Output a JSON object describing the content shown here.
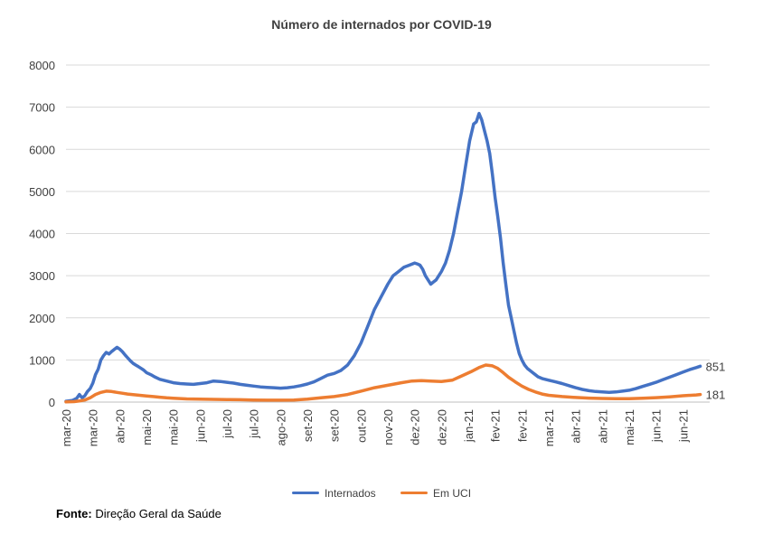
{
  "chart_data": {
    "type": "line",
    "title": "Número de internados por COVID-19",
    "xlabel": "",
    "ylabel": "",
    "ylim": [
      0,
      8000
    ],
    "yticks": [
      0,
      1000,
      2000,
      3000,
      4000,
      5000,
      6000,
      7000,
      8000
    ],
    "x_range_days": [
      0,
      480
    ],
    "x_ticks": [
      {
        "label": "mar-20",
        "day": 0
      },
      {
        "label": "mar-20",
        "day": 20
      },
      {
        "label": "abr-20",
        "day": 40
      },
      {
        "label": "mai-20",
        "day": 60
      },
      {
        "label": "mai-20",
        "day": 80
      },
      {
        "label": "jun-20",
        "day": 100
      },
      {
        "label": "jul-20",
        "day": 120
      },
      {
        "label": "jul-20",
        "day": 140
      },
      {
        "label": "ago-20",
        "day": 160
      },
      {
        "label": "set-20",
        "day": 180
      },
      {
        "label": "set-20",
        "day": 200
      },
      {
        "label": "out-20",
        "day": 220
      },
      {
        "label": "nov-20",
        "day": 240
      },
      {
        "label": "dez-20",
        "day": 260
      },
      {
        "label": "dez-20",
        "day": 280
      },
      {
        "label": "jan-21",
        "day": 300
      },
      {
        "label": "fev-21",
        "day": 320
      },
      {
        "label": "fev-21",
        "day": 340
      },
      {
        "label": "mar-21",
        "day": 360
      },
      {
        "label": "abr-21",
        "day": 380
      },
      {
        "label": "abr-21",
        "day": 400
      },
      {
        "label": "mai-21",
        "day": 420
      },
      {
        "label": "jun-21",
        "day": 440
      },
      {
        "label": "jun-21",
        "day": 460
      }
    ],
    "series": [
      {
        "name": "Internados",
        "color": "#4472c4",
        "end_label": "851",
        "points": [
          [
            0,
            20
          ],
          [
            5,
            40
          ],
          [
            8,
            90
          ],
          [
            10,
            180
          ],
          [
            12,
            100
          ],
          [
            14,
            150
          ],
          [
            16,
            250
          ],
          [
            18,
            320
          ],
          [
            20,
            450
          ],
          [
            22,
            650
          ],
          [
            24,
            780
          ],
          [
            26,
            1000
          ],
          [
            28,
            1100
          ],
          [
            30,
            1180
          ],
          [
            32,
            1140
          ],
          [
            34,
            1200
          ],
          [
            36,
            1250
          ],
          [
            38,
            1300
          ],
          [
            40,
            1260
          ],
          [
            42,
            1200
          ],
          [
            44,
            1120
          ],
          [
            46,
            1050
          ],
          [
            48,
            980
          ],
          [
            50,
            920
          ],
          [
            52,
            880
          ],
          [
            54,
            840
          ],
          [
            56,
            800
          ],
          [
            58,
            760
          ],
          [
            60,
            700
          ],
          [
            62,
            670
          ],
          [
            64,
            640
          ],
          [
            66,
            600
          ],
          [
            70,
            540
          ],
          [
            75,
            500
          ],
          [
            80,
            460
          ],
          [
            85,
            440
          ],
          [
            90,
            430
          ],
          [
            95,
            420
          ],
          [
            100,
            440
          ],
          [
            105,
            460
          ],
          [
            110,
            500
          ],
          [
            115,
            490
          ],
          [
            120,
            470
          ],
          [
            125,
            450
          ],
          [
            130,
            420
          ],
          [
            135,
            400
          ],
          [
            140,
            380
          ],
          [
            145,
            360
          ],
          [
            150,
            350
          ],
          [
            155,
            340
          ],
          [
            160,
            330
          ],
          [
            165,
            340
          ],
          [
            170,
            360
          ],
          [
            175,
            390
          ],
          [
            180,
            430
          ],
          [
            185,
            480
          ],
          [
            190,
            560
          ],
          [
            195,
            640
          ],
          [
            200,
            680
          ],
          [
            205,
            750
          ],
          [
            210,
            880
          ],
          [
            215,
            1100
          ],
          [
            220,
            1400
          ],
          [
            225,
            1800
          ],
          [
            230,
            2200
          ],
          [
            235,
            2500
          ],
          [
            240,
            2800
          ],
          [
            244,
            3000
          ],
          [
            248,
            3100
          ],
          [
            252,
            3200
          ],
          [
            256,
            3250
          ],
          [
            260,
            3300
          ],
          [
            262,
            3280
          ],
          [
            264,
            3250
          ],
          [
            266,
            3150
          ],
          [
            268,
            3000
          ],
          [
            270,
            2900
          ],
          [
            272,
            2800
          ],
          [
            274,
            2850
          ],
          [
            276,
            2900
          ],
          [
            278,
            3000
          ],
          [
            280,
            3100
          ],
          [
            283,
            3300
          ],
          [
            286,
            3600
          ],
          [
            289,
            4000
          ],
          [
            292,
            4500
          ],
          [
            295,
            5000
          ],
          [
            298,
            5600
          ],
          [
            301,
            6200
          ],
          [
            304,
            6600
          ],
          [
            306,
            6650
          ],
          [
            308,
            6850
          ],
          [
            310,
            6700
          ],
          [
            312,
            6450
          ],
          [
            314,
            6200
          ],
          [
            316,
            5900
          ],
          [
            318,
            5400
          ],
          [
            320,
            4850
          ],
          [
            322,
            4400
          ],
          [
            324,
            3900
          ],
          [
            326,
            3300
          ],
          [
            328,
            2800
          ],
          [
            330,
            2300
          ],
          [
            332,
            2000
          ],
          [
            334,
            1700
          ],
          [
            336,
            1400
          ],
          [
            338,
            1150
          ],
          [
            340,
            1000
          ],
          [
            342,
            880
          ],
          [
            344,
            800
          ],
          [
            346,
            750
          ],
          [
            348,
            700
          ],
          [
            350,
            650
          ],
          [
            352,
            600
          ],
          [
            355,
            560
          ],
          [
            360,
            520
          ],
          [
            365,
            480
          ],
          [
            370,
            440
          ],
          [
            375,
            390
          ],
          [
            380,
            340
          ],
          [
            385,
            300
          ],
          [
            390,
            270
          ],
          [
            395,
            250
          ],
          [
            400,
            240
          ],
          [
            405,
            230
          ],
          [
            410,
            240
          ],
          [
            415,
            260
          ],
          [
            420,
            280
          ],
          [
            425,
            320
          ],
          [
            430,
            370
          ],
          [
            435,
            420
          ],
          [
            440,
            470
          ],
          [
            445,
            530
          ],
          [
            450,
            590
          ],
          [
            455,
            650
          ],
          [
            460,
            710
          ],
          [
            465,
            770
          ],
          [
            470,
            820
          ],
          [
            473,
            851
          ]
        ]
      },
      {
        "name": "Em UCI",
        "color": "#ed7d31",
        "end_label": "181",
        "points": [
          [
            0,
            5
          ],
          [
            6,
            10
          ],
          [
            10,
            25
          ],
          [
            14,
            50
          ],
          [
            18,
            100
          ],
          [
            22,
            180
          ],
          [
            26,
            230
          ],
          [
            30,
            260
          ],
          [
            34,
            250
          ],
          [
            38,
            230
          ],
          [
            42,
            210
          ],
          [
            46,
            190
          ],
          [
            50,
            175
          ],
          [
            55,
            160
          ],
          [
            60,
            145
          ],
          [
            65,
            130
          ],
          [
            70,
            115
          ],
          [
            75,
            100
          ],
          [
            80,
            90
          ],
          [
            90,
            75
          ],
          [
            100,
            70
          ],
          [
            110,
            65
          ],
          [
            120,
            60
          ],
          [
            130,
            55
          ],
          [
            140,
            50
          ],
          [
            150,
            45
          ],
          [
            160,
            45
          ],
          [
            170,
            50
          ],
          [
            180,
            70
          ],
          [
            190,
            100
          ],
          [
            200,
            130
          ],
          [
            210,
            180
          ],
          [
            220,
            260
          ],
          [
            230,
            340
          ],
          [
            240,
            400
          ],
          [
            250,
            460
          ],
          [
            258,
            500
          ],
          [
            265,
            510
          ],
          [
            272,
            500
          ],
          [
            280,
            490
          ],
          [
            288,
            520
          ],
          [
            295,
            620
          ],
          [
            302,
            720
          ],
          [
            308,
            820
          ],
          [
            313,
            880
          ],
          [
            318,
            860
          ],
          [
            322,
            800
          ],
          [
            326,
            700
          ],
          [
            330,
            590
          ],
          [
            335,
            480
          ],
          [
            340,
            380
          ],
          [
            345,
            300
          ],
          [
            350,
            240
          ],
          [
            355,
            190
          ],
          [
            360,
            160
          ],
          [
            370,
            130
          ],
          [
            380,
            110
          ],
          [
            390,
            95
          ],
          [
            400,
            85
          ],
          [
            410,
            80
          ],
          [
            420,
            80
          ],
          [
            430,
            90
          ],
          [
            440,
            105
          ],
          [
            450,
            125
          ],
          [
            460,
            150
          ],
          [
            470,
            170
          ],
          [
            473,
            181
          ]
        ]
      }
    ]
  },
  "legend": {
    "internados": "Internados",
    "em_uci": "Em UCI"
  },
  "source": {
    "label": "Fonte:",
    "text": "Direção Geral da Saúde"
  }
}
